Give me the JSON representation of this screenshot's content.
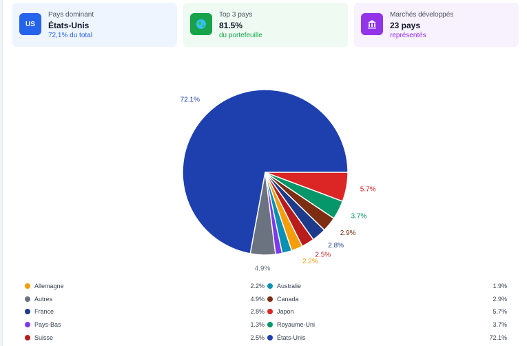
{
  "cards": [
    {
      "icon": "US",
      "label": "Pays dominant",
      "value": "États-Unis",
      "sub": "72,1% du total"
    },
    {
      "icon": "globe-icon",
      "label": "Top 3 pays",
      "value": "81.5%",
      "sub": "du portefeuille"
    },
    {
      "icon": "bank-icon",
      "label": "Marchés développés",
      "value": "23 pays",
      "sub": "représentés"
    }
  ],
  "chart_data": {
    "type": "pie",
    "slices": [
      {
        "name": "États-Unis",
        "value": 72.1,
        "label": "72.1%",
        "color": "#1e40af"
      },
      {
        "name": "Autres",
        "value": 4.9,
        "label": "4.9%",
        "color": "#6b7280"
      },
      {
        "name": "Pays-Bas",
        "value": 1.3,
        "label": "",
        "color": "#7c3aed"
      },
      {
        "name": "Australie",
        "value": 1.9,
        "label": "",
        "color": "#0891b2"
      },
      {
        "name": "Allemagne",
        "value": 2.2,
        "label": "2.2%",
        "color": "#f59e0b"
      },
      {
        "name": "Suisse",
        "value": 2.5,
        "label": "2.5%",
        "color": "#b91c1c"
      },
      {
        "name": "France",
        "value": 2.8,
        "label": "2.8%",
        "color": "#1e3a8a"
      },
      {
        "name": "Canada",
        "value": 2.9,
        "label": "2.9%",
        "color": "#7c2d12"
      },
      {
        "name": "Royaume-Uni",
        "value": 3.7,
        "label": "3.7%",
        "color": "#059669"
      },
      {
        "name": "Japon",
        "value": 5.7,
        "label": "5.7%",
        "color": "#dc2626"
      }
    ]
  },
  "legend": {
    "left": [
      {
        "name": "Allemagne",
        "value": "2.2%",
        "color": "#f59e0b"
      },
      {
        "name": "Autres",
        "value": "4.9%",
        "color": "#6b7280"
      },
      {
        "name": "France",
        "value": "2.8%",
        "color": "#1e3a8a"
      },
      {
        "name": "Pays-Bas",
        "value": "1.3%",
        "color": "#7c3aed"
      },
      {
        "name": "Suisse",
        "value": "2.5%",
        "color": "#b91c1c"
      }
    ],
    "right": [
      {
        "name": "Australie",
        "value": "1.9%",
        "color": "#0891b2"
      },
      {
        "name": "Canada",
        "value": "2.9%",
        "color": "#7c2d12"
      },
      {
        "name": "Japon",
        "value": "5.7%",
        "color": "#dc2626"
      },
      {
        "name": "Royaume-Uni",
        "value": "3.7%",
        "color": "#059669"
      },
      {
        "name": "États-Unis",
        "value": "72.1%",
        "color": "#1e40af"
      }
    ]
  }
}
